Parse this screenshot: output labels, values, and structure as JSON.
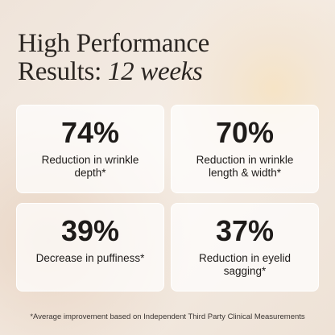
{
  "header": {
    "title_line1": "High Performance",
    "title_line2": "Results:",
    "title_emphasis": "12 weeks"
  },
  "cards": [
    {
      "value": "74%",
      "label": "Reduction in wrinkle depth*"
    },
    {
      "value": "70%",
      "label": "Reduction in wrinkle length & width*"
    },
    {
      "value": "39%",
      "label": "Decrease in puffiness*"
    },
    {
      "value": "37%",
      "label": "Reduction in eyelid sagging*"
    }
  ],
  "footnote": "*Average improvement based on Independent Third Party Clinical Measurements"
}
